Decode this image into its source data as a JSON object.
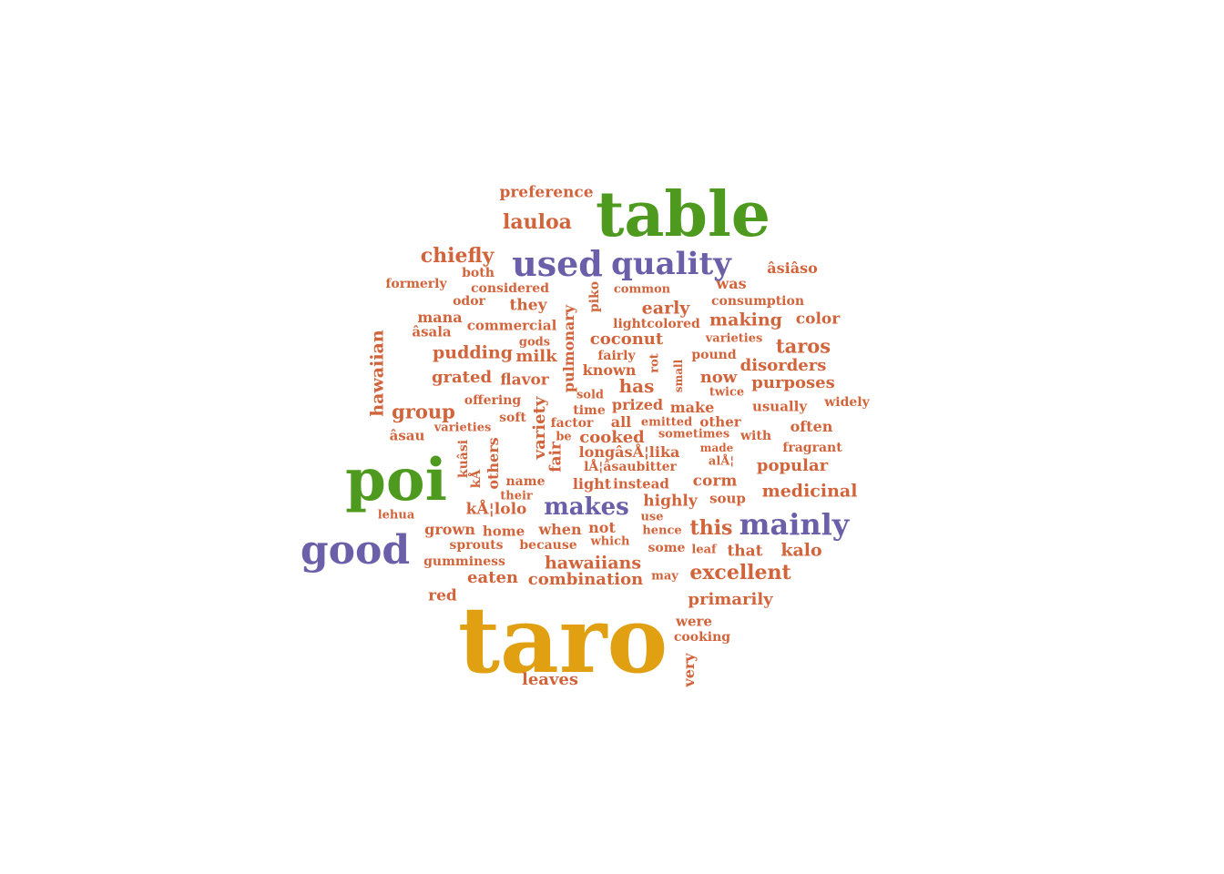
{
  "colors": {
    "orange": "#d2643c",
    "green": "#4d9a1e",
    "purple": "#6a5fa8",
    "gold": "#e0a012"
  },
  "words": [
    {
      "text": "taro",
      "color": "gold"
    },
    {
      "text": "table",
      "color": "green"
    },
    {
      "text": "poi",
      "color": "green"
    },
    {
      "text": "good",
      "color": "purple"
    },
    {
      "text": "used",
      "color": "purple"
    },
    {
      "text": "quality",
      "color": "purple"
    },
    {
      "text": "mainly",
      "color": "purple"
    },
    {
      "text": "makes",
      "color": "purple"
    },
    {
      "text": "preference",
      "color": "orange"
    },
    {
      "text": "lauloa",
      "color": "orange"
    },
    {
      "text": "chiefly",
      "color": "orange"
    },
    {
      "text": "both",
      "color": "orange"
    },
    {
      "text": "âsiâso",
      "color": "orange"
    },
    {
      "text": "formerly",
      "color": "orange"
    },
    {
      "text": "considered",
      "color": "orange"
    },
    {
      "text": "common",
      "color": "orange"
    },
    {
      "text": "was",
      "color": "orange"
    },
    {
      "text": "odor",
      "color": "orange"
    },
    {
      "text": "they",
      "color": "orange"
    },
    {
      "text": "piko",
      "color": "orange"
    },
    {
      "text": "consumption",
      "color": "orange"
    },
    {
      "text": "mana",
      "color": "orange"
    },
    {
      "text": "early",
      "color": "orange"
    },
    {
      "text": "commercial",
      "color": "orange"
    },
    {
      "text": "pulmonary",
      "color": "orange"
    },
    {
      "text": "lightcolored",
      "color": "orange"
    },
    {
      "text": "making",
      "color": "orange"
    },
    {
      "text": "color",
      "color": "orange"
    },
    {
      "text": "hawaiian",
      "color": "orange"
    },
    {
      "text": "âsala",
      "color": "orange"
    },
    {
      "text": "gods",
      "color": "orange"
    },
    {
      "text": "coconut",
      "color": "orange"
    },
    {
      "text": "varieties",
      "color": "orange"
    },
    {
      "text": "taros",
      "color": "orange"
    },
    {
      "text": "pudding",
      "color": "orange"
    },
    {
      "text": "milk",
      "color": "orange"
    },
    {
      "text": "fairly",
      "color": "orange"
    },
    {
      "text": "rot",
      "color": "orange"
    },
    {
      "text": "pound",
      "color": "orange"
    },
    {
      "text": "known",
      "color": "orange"
    },
    {
      "text": "small",
      "color": "orange"
    },
    {
      "text": "disorders",
      "color": "orange"
    },
    {
      "text": "grated",
      "color": "orange"
    },
    {
      "text": "flavor",
      "color": "orange"
    },
    {
      "text": "now",
      "color": "orange"
    },
    {
      "text": "purposes",
      "color": "orange"
    },
    {
      "text": "has",
      "color": "orange"
    },
    {
      "text": "twice",
      "color": "orange"
    },
    {
      "text": "sold",
      "color": "orange"
    },
    {
      "text": "offering",
      "color": "orange"
    },
    {
      "text": "variety",
      "color": "orange"
    },
    {
      "text": "prized",
      "color": "orange"
    },
    {
      "text": "make",
      "color": "orange"
    },
    {
      "text": "usually",
      "color": "orange"
    },
    {
      "text": "widely",
      "color": "orange"
    },
    {
      "text": "group",
      "color": "orange"
    },
    {
      "text": "time",
      "color": "orange"
    },
    {
      "text": "soft",
      "color": "orange"
    },
    {
      "text": "factor",
      "color": "orange"
    },
    {
      "text": "all",
      "color": "orange"
    },
    {
      "text": "emitted",
      "color": "orange"
    },
    {
      "text": "other",
      "color": "orange"
    },
    {
      "text": "often",
      "color": "orange"
    },
    {
      "text": "varieties",
      "color": "orange"
    },
    {
      "text": "âsau",
      "color": "orange"
    },
    {
      "text": "be",
      "color": "orange"
    },
    {
      "text": "cooked",
      "color": "orange"
    },
    {
      "text": "sometimes",
      "color": "orange"
    },
    {
      "text": "with",
      "color": "orange"
    },
    {
      "text": "fragrant",
      "color": "orange"
    },
    {
      "text": "kuâsi",
      "color": "orange"
    },
    {
      "text": "kÅ",
      "color": "orange"
    },
    {
      "text": "others",
      "color": "orange"
    },
    {
      "text": "fair",
      "color": "orange"
    },
    {
      "text": "longâsÅ¦lika",
      "color": "orange"
    },
    {
      "text": "made",
      "color": "orange"
    },
    {
      "text": "alÅ¦",
      "color": "orange"
    },
    {
      "text": "lÅ¦âsaubitter",
      "color": "orange"
    },
    {
      "text": "popular",
      "color": "orange"
    },
    {
      "text": "name",
      "color": "orange"
    },
    {
      "text": "light",
      "color": "orange"
    },
    {
      "text": "instead",
      "color": "orange"
    },
    {
      "text": "corm",
      "color": "orange"
    },
    {
      "text": "their",
      "color": "orange"
    },
    {
      "text": "medicinal",
      "color": "orange"
    },
    {
      "text": "kÅ¦lolo",
      "color": "orange"
    },
    {
      "text": "highly",
      "color": "orange"
    },
    {
      "text": "soup",
      "color": "orange"
    },
    {
      "text": "lehua",
      "color": "orange"
    },
    {
      "text": "use",
      "color": "orange"
    },
    {
      "text": "this",
      "color": "orange"
    },
    {
      "text": "grown",
      "color": "orange"
    },
    {
      "text": "home",
      "color": "orange"
    },
    {
      "text": "when",
      "color": "orange"
    },
    {
      "text": "not",
      "color": "orange"
    },
    {
      "text": "hence",
      "color": "orange"
    },
    {
      "text": "sprouts",
      "color": "orange"
    },
    {
      "text": "because",
      "color": "orange"
    },
    {
      "text": "which",
      "color": "orange"
    },
    {
      "text": "some",
      "color": "orange"
    },
    {
      "text": "leaf",
      "color": "orange"
    },
    {
      "text": "that",
      "color": "orange"
    },
    {
      "text": "kalo",
      "color": "orange"
    },
    {
      "text": "gumminess",
      "color": "orange"
    },
    {
      "text": "hawaiians",
      "color": "orange"
    },
    {
      "text": "eaten",
      "color": "orange"
    },
    {
      "text": "combination",
      "color": "orange"
    },
    {
      "text": "may",
      "color": "orange"
    },
    {
      "text": "excellent",
      "color": "orange"
    },
    {
      "text": "red",
      "color": "orange"
    },
    {
      "text": "primarily",
      "color": "orange"
    },
    {
      "text": "were",
      "color": "orange"
    },
    {
      "text": "cooking",
      "color": "orange"
    },
    {
      "text": "very",
      "color": "orange"
    },
    {
      "text": "leaves",
      "color": "orange"
    }
  ]
}
